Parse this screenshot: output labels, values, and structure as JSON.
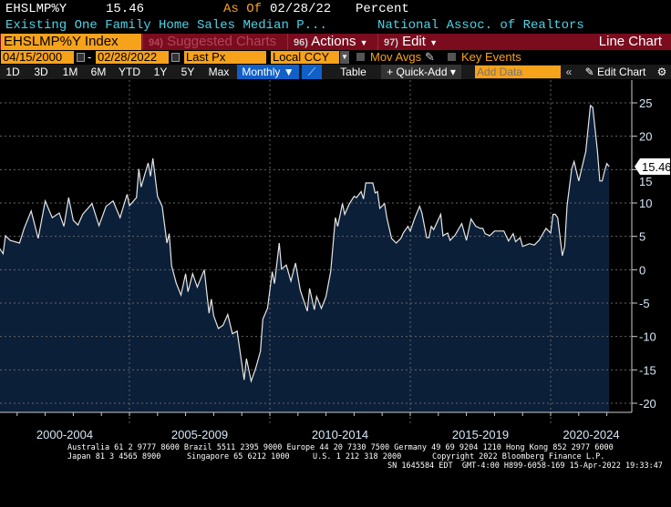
{
  "header": {
    "ticker": "EHSLMP%Y",
    "last_value": "15.46",
    "as_of_label": "As Of",
    "as_of_date": "02/28/22",
    "unit": "Percent",
    "description": "Existing One Family Home Sales Median P...",
    "source": "National Assoc. of Realtors"
  },
  "menubar": {
    "security": "EHSLMP%Y Index",
    "suggested_num": "94)",
    "suggested": "Suggested Charts",
    "actions_num": "96)",
    "actions": "Actions",
    "edit_num": "97)",
    "edit": "Edit",
    "chart_type": "Line Chart"
  },
  "controls": {
    "start_date": "04/15/2000",
    "sep": "-",
    "end_date": "02/28/2022",
    "field": "Last Px",
    "currency": "Local CCY",
    "mov_avgs": "Mov Avgs",
    "key_events": "Key Events"
  },
  "toolbar": {
    "periods": [
      "1D",
      "3D",
      "1M",
      "6M",
      "YTD",
      "1Y",
      "5Y",
      "Max"
    ],
    "frequency": "Monthly ▼",
    "table": "Table",
    "quick_add": "+ Quick-Add ▾",
    "add_data_placeholder": "Add Data",
    "collapse": "«",
    "edit_chart": "Edit Chart"
  },
  "footer": {
    "line1": "Australia 61 2 9777 8600 Brazil 5511 2395 9000 Europe 44 20 7330 7500 Germany 49 69 9204 1210 Hong Kong 852 2977 6000",
    "line2a": "Japan 81 3 4565 8900",
    "line2b": "Singapore 65 6212 1000",
    "line2c": "U.S. 1 212 318 2000",
    "line2d": "Copyright 2022 Bloomberg Finance L.P.",
    "line3": "SN 1645584 EDT  GMT-4:00 H899-6058-169 15-Apr-2022 19:33:47"
  },
  "colors": {
    "background": "#000000",
    "fill": "#0b1f38",
    "line": "#e6e6e6",
    "accent_orange": "#f7a21b",
    "menu_red": "#7a0c1e",
    "cyan": "#4fd3e6",
    "active_blue": "#1160c8"
  },
  "chart_data": {
    "type": "area",
    "y_axis_position": "right",
    "ylim": [
      -22,
      28
    ],
    "yticks": [
      -20,
      -15,
      -10,
      -5,
      0,
      5,
      10,
      15,
      20,
      25
    ],
    "xlim": [
      "2000-04",
      "2022-10"
    ],
    "categories": [
      "2000-2004",
      "2005-2009",
      "2010-2014",
      "2015-2019",
      "2020-2024"
    ],
    "grid": true,
    "last_value_label": "15.46",
    "series": [
      {
        "x": [
          "2000-04",
          "2000-07",
          "2000-08",
          "2000-10",
          "2001-02",
          "2001-04",
          "2001-07",
          "2001-10",
          "2002-01",
          "2002-04",
          "2002-07",
          "2002-09",
          "2002-11",
          "2003-01",
          "2003-03",
          "2003-05",
          "2003-09",
          "2003-12",
          "2004-03",
          "2004-06",
          "2004-09",
          "2004-12",
          "2005-01",
          "2005-04",
          "2005-05",
          "2005-06",
          "2005-09",
          "2005-10",
          "2005-11",
          "2006-01",
          "2006-03",
          "2006-05",
          "2006-06",
          "2006-07",
          "2006-09",
          "2006-11",
          "2007-01",
          "2007-02",
          "2007-04",
          "2007-06",
          "2007-09",
          "2007-11",
          "2007-12",
          "2008-01",
          "2008-03",
          "2008-05",
          "2008-07",
          "2008-09",
          "2008-11",
          "2009-02",
          "2009-03",
          "2009-05",
          "2009-07",
          "2009-09",
          "2009-10",
          "2009-12",
          "2010-02",
          "2010-03",
          "2010-05",
          "2010-06",
          "2010-08",
          "2010-10",
          "2010-12",
          "2011-02",
          "2011-05",
          "2011-06",
          "2011-08",
          "2011-09",
          "2011-11",
          "2012-01",
          "2012-03",
          "2012-05",
          "2012-06",
          "2012-08",
          "2012-09",
          "2012-11",
          "2013-01",
          "2013-02",
          "2013-04",
          "2013-05",
          "2013-06",
          "2013-09",
          "2013-10",
          "2013-11",
          "2013-12",
          "2014-02",
          "2014-03",
          "2014-05",
          "2014-07",
          "2014-09",
          "2014-10",
          "2014-12",
          "2015-01",
          "2015-03",
          "2015-05",
          "2015-06",
          "2015-08",
          "2015-09",
          "2015-10",
          "2015-11",
          "2016-02",
          "2016-03",
          "2016-05",
          "2016-06",
          "2016-08",
          "2016-11",
          "2017-01",
          "2017-03",
          "2017-05",
          "2017-07",
          "2017-08",
          "2017-09",
          "2017-11",
          "2018-01",
          "2018-05",
          "2018-07",
          "2018-09",
          "2018-10",
          "2018-12",
          "2019-01",
          "2019-04",
          "2019-06",
          "2019-08",
          "2019-11",
          "2020-01",
          "2020-02",
          "2020-03",
          "2020-04",
          "2020-06",
          "2020-07",
          "2020-08",
          "2020-10",
          "2020-11",
          "2021-01",
          "2021-04",
          "2021-06",
          "2021-07",
          "2021-09",
          "2021-10",
          "2021-11",
          "2021-12",
          "2022-01",
          "2022-02"
        ],
        "y": [
          4.0,
          2.4,
          5.1,
          4.4,
          4.0,
          6.2,
          8.8,
          4.7,
          10.3,
          7.8,
          8.5,
          6.5,
          10.8,
          7.4,
          6.7,
          8.3,
          9.9,
          6.6,
          9.5,
          10.3,
          7.8,
          11.3,
          9.6,
          10.8,
          15.1,
          12.4,
          16.0,
          14.0,
          16.7,
          11.0,
          9.5,
          4.0,
          5.4,
          0.6,
          -2.0,
          -3.8,
          -0.6,
          -3.3,
          -0.6,
          -2.6,
          0.0,
          -6.5,
          -4.4,
          -6.9,
          -8.8,
          -8.3,
          -6.7,
          -9.6,
          -9.2,
          -16.5,
          -13.3,
          -16.7,
          -14.7,
          -12.2,
          -7.4,
          -5.8,
          -0.3,
          -2.1,
          4.0,
          0.1,
          0.7,
          -1.7,
          1.0,
          -3.1,
          -6.2,
          -2.8,
          -6.0,
          -4.0,
          -5.8,
          -4.0,
          -0.3,
          7.8,
          6.5,
          9.9,
          8.3,
          9.9,
          11.0,
          10.8,
          11.7,
          10.6,
          13.0,
          13.0,
          11.5,
          11.7,
          9.2,
          9.9,
          7.8,
          4.7,
          4.0,
          4.7,
          5.5,
          6.5,
          5.8,
          7.8,
          9.5,
          8.5,
          4.8,
          4.8,
          6.5,
          6.0,
          8.3,
          5.1,
          5.5,
          4.4,
          5.1,
          6.9,
          4.4,
          7.6,
          6.5,
          6.2,
          6.2,
          5.4,
          5.1,
          5.8,
          5.8,
          4.3,
          5.4,
          4.2,
          4.8,
          3.5,
          3.9,
          3.7,
          4.4,
          6.2,
          5.5,
          8.3,
          8.3,
          7.8,
          2.1,
          3.5,
          9.6,
          15.1,
          16.2,
          13.3,
          17.7,
          24.6,
          24.3,
          17.8,
          13.3,
          13.3,
          14.7,
          15.9,
          15.46
        ]
      }
    ]
  }
}
